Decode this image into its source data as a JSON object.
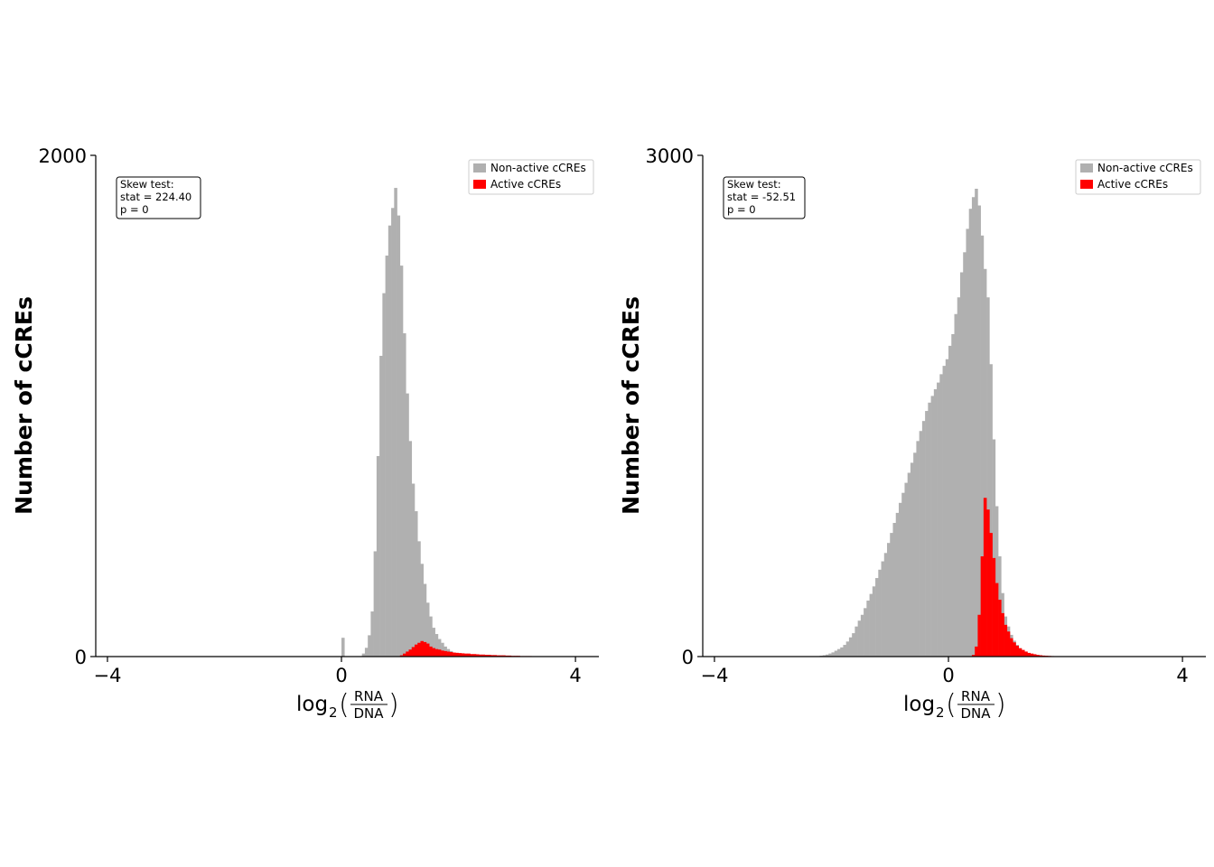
{
  "chart_data": [
    {
      "type": "histogram",
      "xlabel": {
        "base": "log",
        "sub": "2",
        "numerator": "RNA",
        "denominator": "DNA"
      },
      "ylabel": "Number of cCREs",
      "xlim": [
        -4.2,
        4.4
      ],
      "ylim": [
        0,
        2000
      ],
      "xticks": [
        {
          "value": -4,
          "label": "−4"
        },
        {
          "value": 0,
          "label": "0"
        },
        {
          "value": 4,
          "label": "4"
        }
      ],
      "yticks": [
        {
          "value": 0,
          "label": "0"
        },
        {
          "value": 2000,
          "label": "2000"
        }
      ],
      "bin_width": 0.05,
      "legend": {
        "placement": "top-right",
        "entries": [
          {
            "label": "Non-active cCREs",
            "color": "#b0b0b0"
          },
          {
            "label": "Active cCREs",
            "color": "#ff0000"
          }
        ]
      },
      "stats_box": {
        "title": "Skew test:",
        "stat": "stat = 224.40",
        "p": "p = 0"
      },
      "series": [
        {
          "name": "Non-active cCREs",
          "color": "#b0b0b0",
          "x_start": 0.0,
          "values": [
            75,
            0,
            0,
            0,
            0,
            0,
            0,
            12,
            35,
            85,
            180,
            420,
            800,
            1200,
            1450,
            1600,
            1720,
            1790,
            1870,
            1760,
            1560,
            1290,
            1050,
            860,
            690,
            580,
            460,
            370,
            290,
            215,
            160,
            115,
            90,
            70,
            55,
            40,
            30,
            22,
            15,
            10,
            8,
            5,
            4,
            3,
            2,
            1
          ]
        },
        {
          "name": "Active cCREs",
          "color": "#ff0000",
          "x_start": 1.0,
          "values": [
            5,
            12,
            20,
            28,
            38,
            48,
            55,
            62,
            58,
            52,
            40,
            34,
            30,
            28,
            24,
            22,
            20,
            18,
            16,
            15,
            14,
            13,
            12,
            12,
            10,
            10,
            9,
            8,
            8,
            7,
            7,
            6,
            6,
            5,
            5,
            5,
            4,
            4,
            3,
            3,
            3,
            2,
            2,
            2,
            2,
            1,
            1,
            1,
            1,
            1
          ]
        }
      ]
    },
    {
      "type": "histogram",
      "xlabel": {
        "base": "log",
        "sub": "2",
        "numerator": "RNA",
        "denominator": "DNA"
      },
      "ylabel": "Number of cCREs",
      "xlim": [
        -4.2,
        4.4
      ],
      "ylim": [
        0,
        3000
      ],
      "xticks": [
        {
          "value": -4,
          "label": "−4"
        },
        {
          "value": 0,
          "label": "0"
        },
        {
          "value": 4,
          "label": "4"
        }
      ],
      "yticks": [
        {
          "value": 0,
          "label": "0"
        },
        {
          "value": 3000,
          "label": "3000"
        }
      ],
      "bin_width": 0.05,
      "legend": {
        "placement": "top-right",
        "entries": [
          {
            "label": "Non-active cCREs",
            "color": "#b0b0b0"
          },
          {
            "label": "Active cCREs",
            "color": "#ff0000"
          }
        ]
      },
      "stats_box": {
        "title": "Skew test:",
        "stat": "stat = -52.51",
        "p": "p = 0"
      },
      "series": [
        {
          "name": "Non-active cCREs",
          "color": "#b0b0b0",
          "x_start": -2.2,
          "values": [
            5,
            8,
            12,
            18,
            25,
            35,
            45,
            55,
            70,
            90,
            115,
            140,
            180,
            215,
            250,
            290,
            335,
            375,
            420,
            470,
            520,
            570,
            620,
            680,
            740,
            800,
            860,
            920,
            980,
            1040,
            1100,
            1160,
            1220,
            1290,
            1350,
            1410,
            1470,
            1520,
            1560,
            1600,
            1640,
            1690,
            1740,
            1780,
            1860,
            1930,
            2050,
            2150,
            2300,
            2420,
            2560,
            2680,
            2750,
            2800,
            2700,
            2520,
            2320,
            2150,
            1750,
            1300,
            900,
            600,
            380,
            240,
            180,
            130,
            95,
            70,
            50,
            35,
            25,
            18,
            12,
            8,
            5,
            3,
            2,
            1
          ]
        },
        {
          "name": "Active cCREs",
          "color": "#ff0000",
          "x_start": 0.4,
          "values": [
            10,
            60,
            250,
            600,
            950,
            880,
            740,
            590,
            440,
            340,
            260,
            190,
            150,
            110,
            85,
            65,
            50,
            40,
            30,
            22,
            18,
            14,
            10,
            8,
            6,
            5,
            4,
            3,
            2,
            2,
            1,
            1
          ]
        }
      ]
    }
  ]
}
